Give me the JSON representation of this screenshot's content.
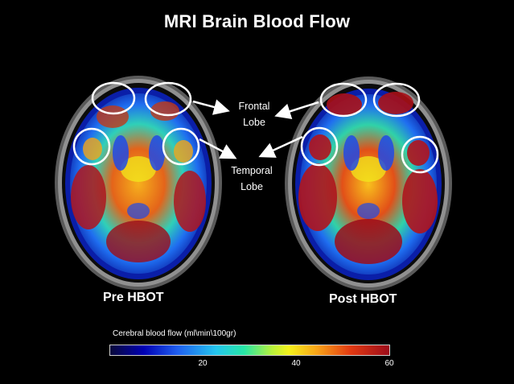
{
  "title": "MRI Brain Blood Flow",
  "labels": {
    "frontal_line1": "Frontal",
    "frontal_line2": "Lobe",
    "temporal_line1": "Temporal",
    "temporal_line2": "Lobe"
  },
  "captions": {
    "pre": "Pre HBOT",
    "post": "Post HBOT"
  },
  "colorbar": {
    "title": "Cerebral blood flow (ml\\min\\100gr)",
    "ticks": [
      "20",
      "40",
      "60"
    ]
  },
  "colors": {
    "background": "#000000",
    "highlight_circle": "#ffffff",
    "low_flow": "#0000b4",
    "high_flow": "#9c0c1a"
  }
}
